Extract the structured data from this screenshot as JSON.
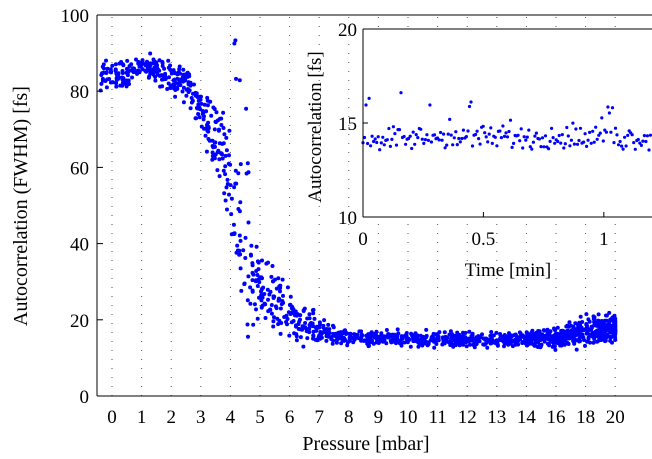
{
  "chart_data": [
    {
      "type": "scatter",
      "xlabel": "Pressure [mbar]",
      "ylabel": "Autocorrelation (FWHM) [fs]",
      "ylim": [
        0,
        100
      ],
      "y_ticks": [
        0,
        20,
        40,
        60,
        80,
        100
      ],
      "x_tick_labels": [
        "0",
        "1",
        "2",
        "3",
        "4",
        "5",
        "6",
        "7",
        "8",
        "9",
        "10",
        "11",
        "12",
        "13",
        "14",
        "16",
        "18",
        "20"
      ],
      "grid": "dotted vertical",
      "marker_color": "#0000ff",
      "series_profile": {
        "x": [
          0,
          0.5,
          1,
          1.5,
          2,
          2.5,
          3,
          3.5,
          4,
          4.5,
          5,
          5.5,
          6,
          6.5,
          7,
          8,
          9,
          10,
          11,
          12,
          13,
          14,
          16,
          18,
          20
        ],
        "y": [
          85,
          84,
          87,
          86,
          83,
          82,
          74,
          68,
          57,
          32,
          28,
          25,
          21,
          19,
          17,
          15.5,
          15,
          15,
          15,
          14.8,
          14.8,
          15,
          15,
          17,
          18
        ],
        "spread": [
          3,
          3,
          2,
          3,
          3,
          4,
          4,
          8,
          10,
          12,
          6,
          6,
          5,
          4,
          3,
          1.5,
          1.5,
          1.5,
          1.5,
          1.5,
          1.5,
          1.5,
          2,
          3,
          3
        ]
      }
    },
    {
      "type": "scatter",
      "inset": true,
      "xlabel": "Time [min]",
      "ylabel": "Autocorrelation [fs]",
      "xlim": [
        0,
        1.2
      ],
      "ylim": [
        10,
        20
      ],
      "x_ticks": [
        0,
        0.5,
        1
      ],
      "x_tick_labels": [
        "0",
        "0.5",
        "1"
      ],
      "y_ticks": [
        10,
        15,
        20
      ],
      "marker_color": "#0000ff",
      "mean": 14.2,
      "spread": 0.6
    }
  ]
}
